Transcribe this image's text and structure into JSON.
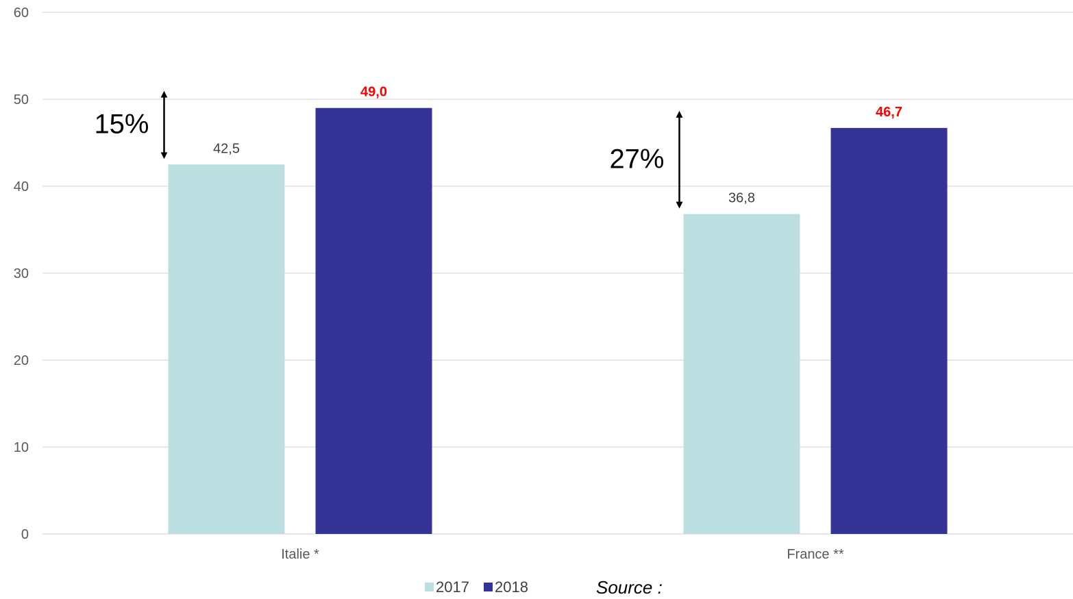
{
  "chart_data": {
    "type": "bar",
    "categories": [
      "Italie *",
      "France **"
    ],
    "series": [
      {
        "name": "2017",
        "values": [
          42.5,
          36.8
        ],
        "labels": [
          "42,5",
          "36,8"
        ],
        "color": "#bce0e2",
        "label_color": "#404040",
        "label_bold": false
      },
      {
        "name": "2018",
        "values": [
          49.0,
          46.7
        ],
        "labels": [
          "49,0",
          "46,7"
        ],
        "color": "#343396",
        "label_color": "#ff0000",
        "label_bold": true
      }
    ],
    "ylim": [
      0,
      60
    ],
    "yticks": [
      0,
      10,
      20,
      30,
      40,
      50,
      60
    ],
    "grid": true,
    "legend": "bottom",
    "annotations": [
      {
        "text": "15%",
        "category": "Italie *"
      },
      {
        "text": "27%",
        "category": "France **"
      }
    ],
    "source_label": "Source :"
  }
}
